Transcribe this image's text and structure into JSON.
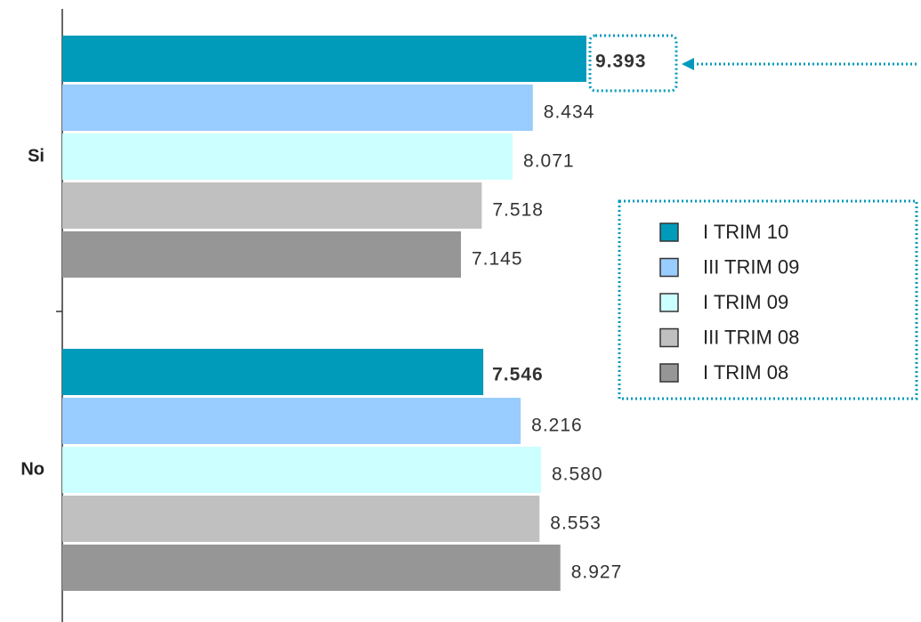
{
  "chart_data": {
    "type": "bar",
    "orientation": "horizontal",
    "categories": [
      "Si",
      "No"
    ],
    "series": [
      {
        "name": "I TRIM 10",
        "color": "#009BBB",
        "values": [
          9.393,
          7.546
        ],
        "value_labels": [
          "9.393",
          "7.546"
        ]
      },
      {
        "name": "III TRIM 09",
        "color": "#99CCFF",
        "values": [
          8.434,
          8.216
        ],
        "value_labels": [
          "8.434",
          "8.216"
        ]
      },
      {
        "name": "I TRIM 09",
        "color": "#CCFFFF",
        "values": [
          8.071,
          8.58
        ],
        "value_labels": [
          "8.071",
          "8.580"
        ]
      },
      {
        "name": "III TRIM 08",
        "color": "#C0C0C0",
        "values": [
          7.518,
          8.553
        ],
        "value_labels": [
          "7.518",
          "8.553"
        ]
      },
      {
        "name": "I TRIM 08",
        "color": "#969696",
        "values": [
          7.145,
          8.927
        ],
        "value_labels": [
          "7.145",
          "8.927"
        ]
      }
    ]
  }
}
